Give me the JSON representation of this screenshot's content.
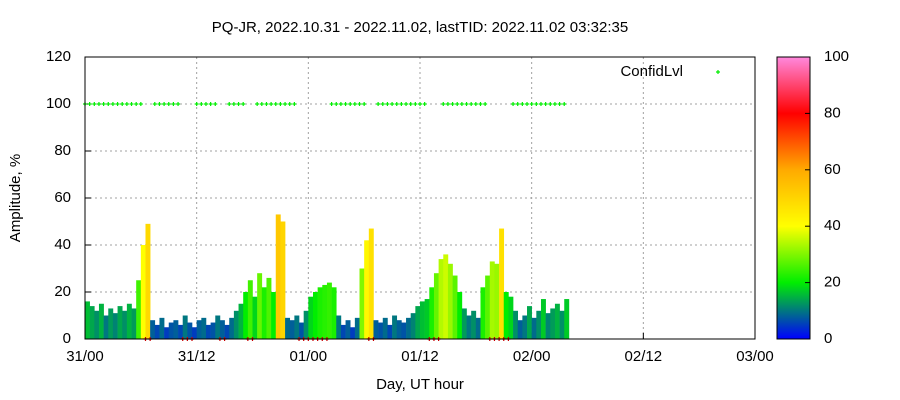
{
  "chart_data": {
    "type": "bar",
    "title": "PQ-JR, 2022.10.31 - 2022.11.02, lastTID: 2022.11.02 03:32:35",
    "x_label": "Day, UT hour",
    "y_label": "Amplitude, %",
    "xlim": [
      0,
      72
    ],
    "xticks": [
      {
        "value": 0,
        "label": "31/00"
      },
      {
        "value": 12,
        "label": "31/12"
      },
      {
        "value": 24,
        "label": "01/00"
      },
      {
        "value": 36,
        "label": "01/12"
      },
      {
        "value": 48,
        "label": "02/00"
      },
      {
        "value": 60,
        "label": "02/12"
      },
      {
        "value": 72,
        "label": "03/00"
      }
    ],
    "ylim": [
      0,
      120
    ],
    "yticks": [
      0,
      20,
      40,
      60,
      80,
      100,
      120
    ],
    "grid": true,
    "legend": "top-right",
    "cblim": [
      0,
      100
    ],
    "cbticks": [
      0,
      20,
      40,
      60,
      80,
      100
    ],
    "palette": [
      "#0000ff",
      "#00ee00",
      "#ffff00",
      "#ffaa00",
      "#ff0000",
      "#ff88dd"
    ],
    "x": [
      0,
      0.5,
      1,
      1.5,
      2,
      2.5,
      3,
      3.5,
      4,
      4.5,
      5,
      5.5,
      6,
      6.5,
      7,
      7.5,
      8,
      8.5,
      9,
      9.5,
      10,
      10.5,
      11,
      11.5,
      12,
      12.5,
      13,
      13.5,
      14,
      14.5,
      15,
      15.5,
      16,
      16.5,
      17,
      17.5,
      18,
      18.5,
      19,
      19.5,
      20,
      20.5,
      21,
      21.5,
      22,
      22.5,
      23,
      23.5,
      24,
      24.5,
      25,
      25.5,
      26,
      26.5,
      27,
      27.5,
      28,
      28.5,
      29,
      29.5,
      30,
      30.5,
      31,
      31.5,
      32,
      32.5,
      33,
      33.5,
      34,
      34.5,
      35,
      35.5,
      36,
      36.5,
      37,
      37.5,
      38,
      38.5,
      39,
      39.5,
      40,
      40.5,
      41,
      41.5,
      42,
      42.5,
      43,
      43.5,
      44,
      44.5,
      45,
      45.5,
      46,
      46.5,
      47,
      47.5,
      48,
      48.5,
      49,
      49.5,
      50,
      50.5,
      51,
      51.5
    ],
    "values": [
      16,
      14,
      12,
      15,
      10,
      13,
      11,
      14,
      12,
      15,
      13,
      25,
      40,
      49,
      8,
      6,
      9,
      5,
      7,
      8,
      6,
      10,
      7,
      5,
      8,
      9,
      6,
      7,
      10,
      8,
      6,
      9,
      12,
      15,
      20,
      25,
      18,
      28,
      22,
      26,
      20,
      53,
      50,
      9,
      8,
      10,
      7,
      12,
      18,
      20,
      22,
      23,
      24,
      22,
      10,
      6,
      8,
      5,
      9,
      30,
      42,
      47,
      8,
      7,
      9,
      6,
      10,
      8,
      7,
      9,
      11,
      14,
      16,
      17,
      22,
      28,
      34,
      36,
      32,
      27,
      20,
      13,
      10,
      12,
      9,
      22,
      27,
      33,
      32,
      47,
      20,
      18,
      12,
      8,
      10,
      14,
      9,
      12,
      17,
      11,
      13,
      15,
      12,
      17
    ],
    "confidence": {
      "name": "ConfidLvl",
      "color": "#00ee00",
      "low_color": "#cc0000",
      "values": [
        100,
        100,
        100,
        100,
        100,
        100,
        100,
        100,
        100,
        100,
        100,
        100,
        100,
        0,
        0,
        100,
        100,
        100,
        100,
        100,
        100,
        0,
        0,
        0,
        100,
        100,
        100,
        100,
        100,
        0,
        0,
        100,
        100,
        100,
        100,
        0,
        0,
        100,
        100,
        100,
        100,
        100,
        100,
        100,
        100,
        100,
        0,
        0,
        0,
        0,
        0,
        0,
        0,
        100,
        100,
        100,
        100,
        100,
        100,
        100,
        100,
        0,
        0,
        100,
        100,
        100,
        100,
        100,
        100,
        100,
        100,
        100,
        100,
        100,
        0,
        0,
        0,
        100,
        100,
        100,
        100,
        100,
        100,
        100,
        100,
        100,
        100,
        0,
        0,
        0,
        0,
        0,
        100,
        100,
        100,
        100,
        100,
        100,
        100,
        100,
        100,
        100,
        100,
        100
      ]
    }
  }
}
